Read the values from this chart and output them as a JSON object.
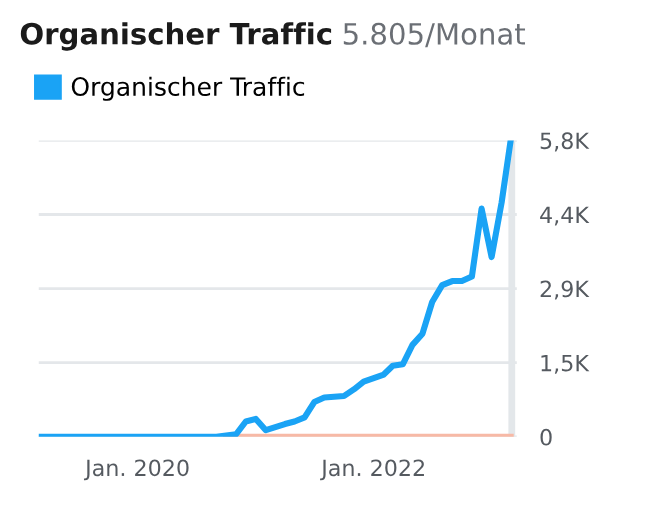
{
  "chart_data": {
    "type": "line",
    "title": "Organischer Traffic",
    "subtitle": "5.805/Monat",
    "x": [
      "2019-03",
      "2019-06",
      "2019-09",
      "2019-12",
      "2020-03",
      "2020-06",
      "2020-09",
      "2020-11",
      "2020-12",
      "2021-01",
      "2021-02",
      "2021-04",
      "2021-05",
      "2021-06",
      "2021-07",
      "2021-08",
      "2021-10",
      "2021-11",
      "2021-12",
      "2022-02",
      "2022-03",
      "2022-04",
      "2022-05",
      "2022-06",
      "2022-07",
      "2022-08",
      "2022-09",
      "2022-10",
      "2022-11",
      "2022-12",
      "2023-01",
      "2023-02",
      "2023-03"
    ],
    "series": [
      {
        "color": "#f7b9a6",
        "x": [
          "2020-10",
          "2023-03"
        ],
        "values": [
          0,
          0
        ]
      },
      {
        "name": "Organischer Traffic",
        "color": "#1aa3f5",
        "values": [
          0,
          0,
          0,
          0,
          0,
          0,
          0,
          50,
          300,
          350,
          130,
          250,
          300,
          380,
          680,
          770,
          800,
          930,
          1080,
          1220,
          1390,
          1420,
          1800,
          2020,
          2640,
          2970,
          3050,
          3050,
          3140,
          4470,
          3520,
          4590,
          5805
        ]
      }
    ],
    "xlim": [
      "2019-03",
      "2023-03-20"
    ],
    "ylim": [
      0,
      5805
    ],
    "xticks": [
      {
        "value": "2020-01",
        "label": "Jan. 2020"
      },
      {
        "value": "2022-01",
        "label": "Jan. 2022"
      }
    ],
    "yticks": [
      0,
      {
        "value": 1451,
        "label": "1,5K"
      },
      {
        "value": 2903,
        "label": "2,9K"
      },
      {
        "value": 4354,
        "label": "4,4K"
      },
      {
        "value": 5805,
        "label": "5,8K"
      }
    ],
    "bands": [
      {
        "axis": "x",
        "from": "2023-02-22",
        "to": "2023-03-15",
        "color": "#e3e7ea"
      }
    ],
    "grid": "y",
    "legend": "top left",
    "marker": "none",
    "line_style": "solid"
  }
}
